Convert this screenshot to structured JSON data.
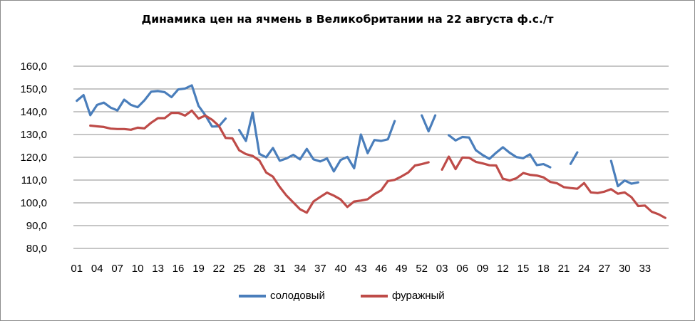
{
  "chart_data": {
    "type": "line",
    "title": "Динамика цен на ячмень в Великобритании на 22 августа ф.с./т",
    "xlabel": "",
    "ylabel": "",
    "ylim": [
      80,
      160
    ],
    "y_ticks": [
      "80,0",
      "90,0",
      "100,0",
      "110,0",
      "120,0",
      "130,0",
      "140,0",
      "150,0",
      "160,0"
    ],
    "x_tick_labels": [
      "01",
      "04",
      "07",
      "10",
      "13",
      "16",
      "19",
      "22",
      "25",
      "28",
      "31",
      "34",
      "37",
      "40",
      "43",
      "46",
      "49",
      "52",
      "03",
      "06",
      "09",
      "12",
      "15",
      "18",
      "21",
      "24",
      "27",
      "30",
      "33"
    ],
    "grid": "horizontal",
    "legend_position": "bottom",
    "series": [
      {
        "name": "солодовый",
        "color": "#4a7ebb",
        "values": [
          144.8,
          147.3,
          138.5,
          143.0,
          144.0,
          141.8,
          140.6,
          145.3,
          143.0,
          142.0,
          145.0,
          148.8,
          149.1,
          148.6,
          146.4,
          149.8,
          150.2,
          151.6,
          142.6,
          138.5,
          133.5,
          133.6,
          137.0,
          null,
          132.0,
          127.2,
          139.7,
          121.5,
          120.0,
          124.1,
          118.5,
          119.5,
          121.1,
          119.1,
          123.7,
          119.1,
          118.2,
          119.5,
          113.8,
          118.8,
          120.2,
          115.2,
          130.0,
          121.8,
          127.6,
          127.2,
          127.9,
          135.9,
          null,
          null,
          null,
          138.4,
          131.4,
          138.4,
          null,
          129.7,
          127.4,
          128.9,
          128.7,
          123.1,
          121.0,
          119.3,
          122.0,
          124.4,
          122.0,
          120.1,
          119.6,
          121.3,
          116.6,
          117.0,
          115.6,
          null,
          null,
          117.1,
          122.2,
          null,
          null,
          null,
          null,
          118.4,
          107.3,
          109.8,
          108.4,
          109.0,
          null,
          null,
          null,
          null
        ]
      },
      {
        "name": "фуражный",
        "color": "#be4b48",
        "values": [
          null,
          null,
          133.9,
          133.6,
          133.3,
          132.6,
          132.4,
          132.4,
          132.1,
          133.0,
          132.7,
          135.2,
          137.2,
          137.2,
          139.5,
          139.5,
          138.3,
          140.5,
          137.0,
          138.3,
          136.5,
          133.8,
          128.5,
          128.3,
          123.1,
          121.4,
          120.6,
          118.6,
          113.3,
          111.5,
          107.0,
          103.2,
          100.2,
          97.2,
          95.7,
          100.6,
          102.6,
          104.5,
          103.2,
          101.5,
          98.2,
          100.6,
          101.0,
          101.6,
          103.8,
          105.5,
          109.6,
          110.1,
          111.6,
          113.3,
          116.4,
          117.0,
          117.8,
          null,
          114.6,
          120.3,
          114.8,
          119.9,
          119.8,
          118.0,
          117.3,
          116.5,
          116.4,
          110.6,
          109.8,
          110.8,
          113.1,
          112.3,
          112.0,
          111.2,
          109.2,
          108.6,
          106.9,
          106.5,
          106.2,
          108.7,
          104.6,
          104.3,
          104.9,
          106.0,
          104.0,
          104.6,
          102.5,
          98.6,
          98.8,
          96.1,
          95.0,
          93.4
        ]
      }
    ]
  }
}
